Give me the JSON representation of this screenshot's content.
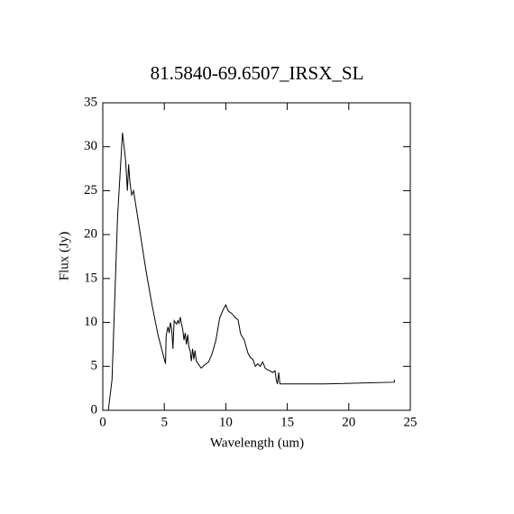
{
  "chart_data": {
    "type": "line",
    "title": "81.5840-69.6507_IRSX_SL",
    "x_label": "Wavelength (um)",
    "y_label": "Flux (Jy)",
    "xlim": [
      0,
      25
    ],
    "ylim": [
      0,
      35
    ],
    "xticks": [
      0,
      5,
      10,
      15,
      20,
      25
    ],
    "yticks": [
      0,
      5,
      10,
      15,
      20,
      25,
      30,
      35
    ],
    "color": "#000000",
    "series": [
      {
        "x": [
          0.45,
          0.75,
          1.2,
          1.6,
          1.85,
          2.0,
          2.1,
          2.2,
          2.35,
          2.5,
          3,
          3.5,
          4,
          4.5,
          5.1,
          5.15,
          5.3,
          5.4,
          5.5,
          5.6,
          5.7,
          5.8,
          6.0,
          6.1,
          6.2,
          6.3,
          6.4,
          6.5,
          6.6,
          6.7,
          6.8,
          6.9,
          7.0,
          7.1,
          7.2,
          7.3,
          7.4,
          7.5,
          7.6,
          7.8,
          8.0,
          8.3,
          8.6,
          8.9,
          9.2,
          9.5,
          9.8,
          10.0,
          10.2,
          10.5,
          10.8,
          11.0,
          11.2,
          11.5,
          11.8,
          12.0,
          12.2,
          12.4,
          12.6,
          12.8,
          13.0,
          13.2,
          13.4,
          13.6,
          13.8,
          14.0,
          14.1,
          14.2,
          14.3,
          14.4,
          18,
          23.7,
          23.7
        ],
        "values": [
          0,
          3.5,
          22,
          31.6,
          28.5,
          25,
          28,
          26,
          24.5,
          25,
          20.5,
          16,
          12,
          8.5,
          5.3,
          8.5,
          9.5,
          8.8,
          10,
          9.2,
          7,
          10.2,
          9.8,
          10.2,
          9.9,
          10.6,
          9.8,
          9.2,
          8,
          8.8,
          7.5,
          8.6,
          7.2,
          6.8,
          5.6,
          7.0,
          5.8,
          6.8,
          5.6,
          5.2,
          4.8,
          5.2,
          5.5,
          6.5,
          8,
          10.5,
          11.5,
          12,
          11.3,
          11,
          10.5,
          10.3,
          8.7,
          8,
          6.5,
          6,
          5.8,
          5.0,
          5.3,
          5.0,
          5.5,
          4.8,
          4.6,
          4.5,
          4.3,
          4.5,
          3.5,
          3.0,
          4.3,
          3.0,
          3.0,
          3.2,
          3.5
        ]
      }
    ]
  }
}
